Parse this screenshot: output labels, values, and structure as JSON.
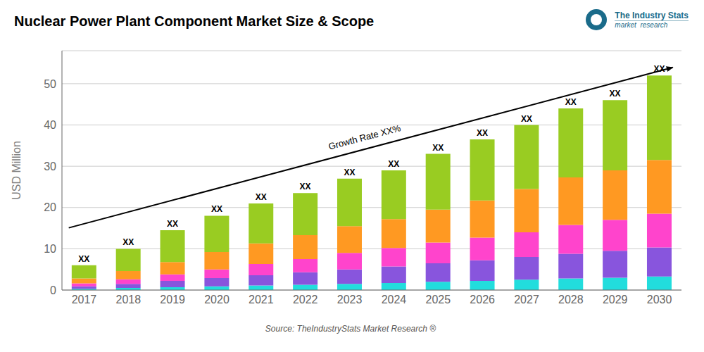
{
  "chart_data": {
    "type": "bar",
    "title": "Nuclear Power Plant Component Market Size & Scope",
    "ylabel": "USD Million",
    "categories": [
      "2017",
      "2018",
      "2019",
      "2020",
      "2021",
      "2022",
      "2023",
      "2024",
      "2025",
      "2026",
      "2027",
      "2028",
      "2029",
      "2030"
    ],
    "series": [
      {
        "color": "#22DDDD",
        "values": [
          0.3,
          0.5,
          0.7,
          0.9,
          1.1,
          1.3,
          1.5,
          1.7,
          2.0,
          2.2,
          2.5,
          2.8,
          3.0,
          3.3
        ]
      },
      {
        "color": "#8855DD",
        "values": [
          0.6,
          1.0,
          1.5,
          2.0,
          2.5,
          3.0,
          3.5,
          4.0,
          4.5,
          5.0,
          5.5,
          6.0,
          6.5,
          7.0
        ]
      },
      {
        "color": "#FF44CC",
        "values": [
          0.7,
          1.1,
          1.6,
          2.1,
          2.7,
          3.2,
          4.0,
          4.5,
          5.0,
          5.5,
          6.0,
          7.0,
          7.5,
          8.2
        ]
      },
      {
        "color": "#FF9922",
        "values": [
          1.2,
          2.0,
          3.0,
          4.2,
          5.0,
          5.8,
          6.5,
          7.0,
          8.0,
          9.0,
          10.5,
          11.5,
          12.0,
          13.0
        ]
      },
      {
        "color": "#99CC22",
        "values": [
          3.2,
          5.4,
          7.7,
          8.8,
          9.7,
          10.2,
          11.5,
          11.8,
          13.5,
          14.8,
          15.5,
          16.7,
          17.0,
          20.5
        ]
      }
    ],
    "stacked": true,
    "grid": true,
    "ylim": [
      0,
      58
    ],
    "yticks": [
      0,
      10,
      20,
      30,
      40,
      50
    ],
    "annotations": [
      "Growth Rate XX%",
      "XX",
      "Source: TheIndustryStats Market Research ®",
      "The Industry Stats",
      "market  research"
    ]
  }
}
